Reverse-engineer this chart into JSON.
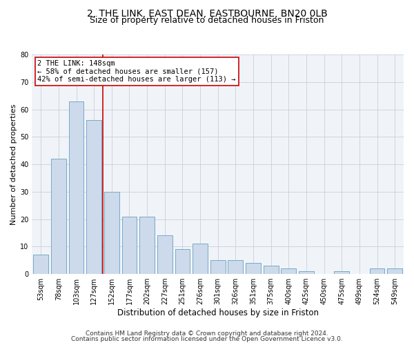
{
  "title1": "2, THE LINK, EAST DEAN, EASTBOURNE, BN20 0LB",
  "title2": "Size of property relative to detached houses in Friston",
  "xlabel": "Distribution of detached houses by size in Friston",
  "ylabel": "Number of detached properties",
  "categories": [
    "53sqm",
    "78sqm",
    "103sqm",
    "127sqm",
    "152sqm",
    "177sqm",
    "202sqm",
    "227sqm",
    "251sqm",
    "276sqm",
    "301sqm",
    "326sqm",
    "351sqm",
    "375sqm",
    "400sqm",
    "425sqm",
    "450sqm",
    "475sqm",
    "499sqm",
    "524sqm",
    "549sqm"
  ],
  "values": [
    7,
    42,
    63,
    56,
    30,
    21,
    21,
    14,
    9,
    11,
    5,
    5,
    4,
    3,
    2,
    1,
    0,
    1,
    0,
    2,
    2
  ],
  "bar_color": "#ccdaeb",
  "bar_edge_color": "#6a9fc0",
  "vline_pos": 3.5,
  "vline_color": "#cc0000",
  "annotation_text": "2 THE LINK: 148sqm\n← 58% of detached houses are smaller (157)\n42% of semi-detached houses are larger (113) →",
  "annotation_box_color": "#ffffff",
  "annotation_box_edge": "#cc0000",
  "ylim": [
    0,
    80
  ],
  "yticks": [
    0,
    10,
    20,
    30,
    40,
    50,
    60,
    70,
    80
  ],
  "grid_color": "#c8d0dc",
  "footer1": "Contains HM Land Registry data © Crown copyright and database right 2024.",
  "footer2": "Contains public sector information licensed under the Open Government Licence v3.0.",
  "title1_fontsize": 10,
  "title2_fontsize": 9,
  "xlabel_fontsize": 8.5,
  "ylabel_fontsize": 8,
  "tick_fontsize": 7,
  "annotation_fontsize": 7.5,
  "footer_fontsize": 6.5,
  "bg_color": "#f0f4f8"
}
